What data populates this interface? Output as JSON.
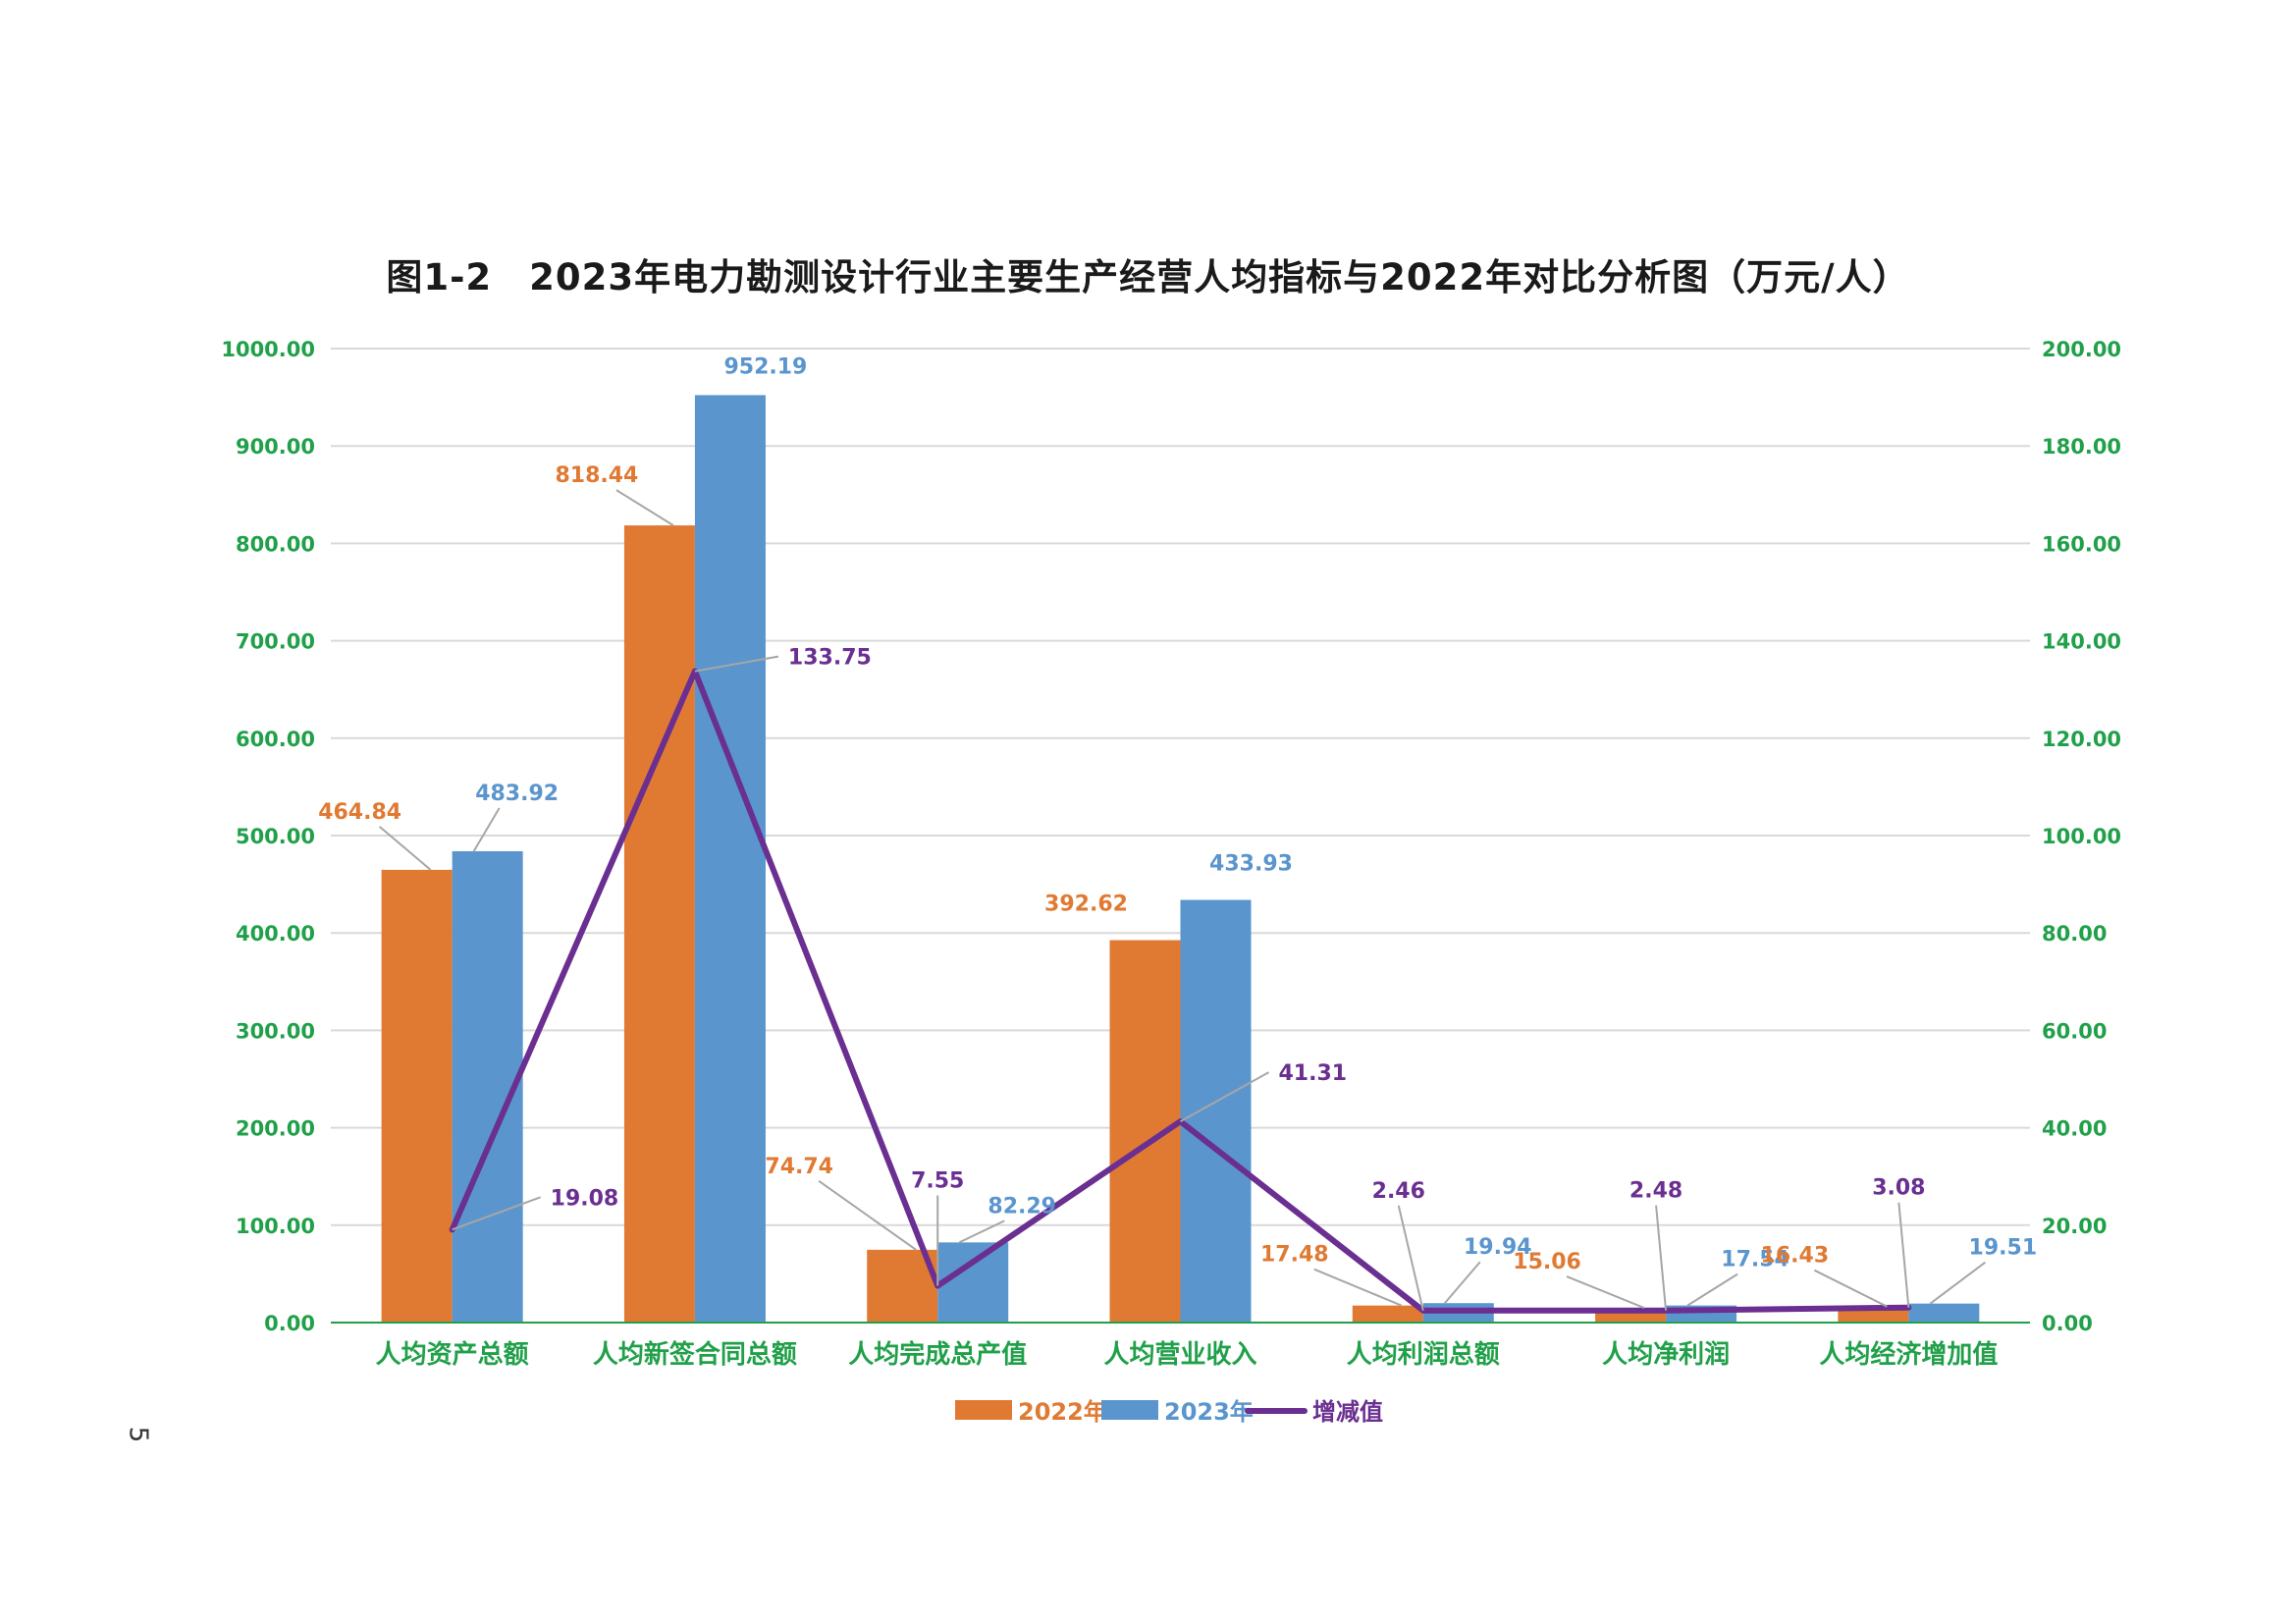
{
  "page": {
    "page_number": "5"
  },
  "colors": {
    "series_2022": "#E07A33",
    "series_2023": "#5B95CE",
    "change_line": "#6A2F91",
    "axis_text": "#21A04A",
    "gridline": "#D9D9D9",
    "leader_line": "#A6A6A6"
  },
  "chart_data": {
    "type": "bar",
    "title": "图1-2　2023年电力勘测设计行业主要生产经营人均指标与2022年对比分析图（万元/人）",
    "categories": [
      "人均资产总额",
      "人均新签合同总额",
      "人均完成总产值",
      "人均营业收入",
      "人均利润总额",
      "人均净利润",
      "人均经济增加值"
    ],
    "series": [
      {
        "name": "2022年",
        "axis": "left",
        "values": [
          464.84,
          818.44,
          74.74,
          392.62,
          17.48,
          15.06,
          16.43
        ],
        "labels": [
          "464.84",
          "818.44",
          "74.74",
          "392.62",
          "17.48",
          "15.06",
          "16.43"
        ]
      },
      {
        "name": "2023年",
        "axis": "left",
        "values": [
          483.92,
          952.19,
          82.29,
          433.93,
          19.94,
          17.54,
          19.51
        ],
        "labels": [
          "483.92",
          "952.19",
          "82.29",
          "433.93",
          "19.94",
          "17.54",
          "19.51"
        ]
      },
      {
        "name": "增减值",
        "type": "line",
        "axis": "right",
        "values": [
          19.08,
          133.75,
          7.55,
          41.31,
          2.46,
          2.48,
          3.08
        ],
        "labels": [
          "19.08",
          "133.75",
          "7.55",
          "41.31",
          "2.46",
          "2.48",
          "3.08"
        ]
      }
    ],
    "left_axis": {
      "ylim": [
        0,
        1000
      ],
      "ticks": [
        "0.00",
        "100.00",
        "200.00",
        "300.00",
        "400.00",
        "500.00",
        "600.00",
        "700.00",
        "800.00",
        "900.00",
        "1000.00"
      ]
    },
    "right_axis": {
      "ylim": [
        0,
        200
      ],
      "ticks": [
        "0.00",
        "20.00",
        "40.00",
        "60.00",
        "80.00",
        "100.00",
        "120.00",
        "140.00",
        "160.00",
        "180.00",
        "200.00"
      ]
    },
    "grid": true,
    "legend_position": "bottom"
  }
}
